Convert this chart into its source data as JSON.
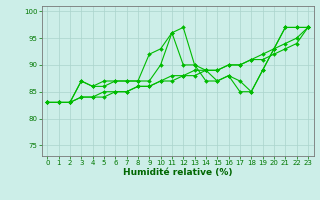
{
  "title": "",
  "xlabel": "Humidité relative (%)",
  "ylabel": "",
  "xlim": [
    -0.5,
    23.5
  ],
  "ylim": [
    73,
    101
  ],
  "yticks": [
    75,
    80,
    85,
    90,
    95,
    100
  ],
  "xticks": [
    0,
    1,
    2,
    3,
    4,
    5,
    6,
    7,
    8,
    9,
    10,
    11,
    12,
    13,
    14,
    15,
    16,
    17,
    18,
    19,
    20,
    21,
    22,
    23
  ],
  "background_color": "#cceee8",
  "grid_color": "#aad4cc",
  "line_color": "#00bb00",
  "series": [
    [
      83,
      83,
      83,
      87,
      86,
      87,
      87,
      87,
      87,
      87,
      90,
      96,
      97,
      90,
      89,
      87,
      88,
      87,
      85,
      89,
      93,
      97,
      97,
      97
    ],
    [
      83,
      83,
      83,
      87,
      86,
      86,
      87,
      87,
      87,
      92,
      93,
      96,
      90,
      90,
      87,
      87,
      88,
      85,
      85,
      89,
      93,
      97,
      97,
      97
    ],
    [
      83,
      83,
      83,
      84,
      84,
      84,
      85,
      85,
      86,
      86,
      87,
      87,
      88,
      88,
      89,
      89,
      90,
      90,
      91,
      91,
      92,
      93,
      94,
      97
    ],
    [
      83,
      83,
      83,
      84,
      84,
      85,
      85,
      85,
      86,
      86,
      87,
      88,
      88,
      89,
      89,
      89,
      90,
      90,
      91,
      92,
      93,
      94,
      95,
      97
    ]
  ]
}
